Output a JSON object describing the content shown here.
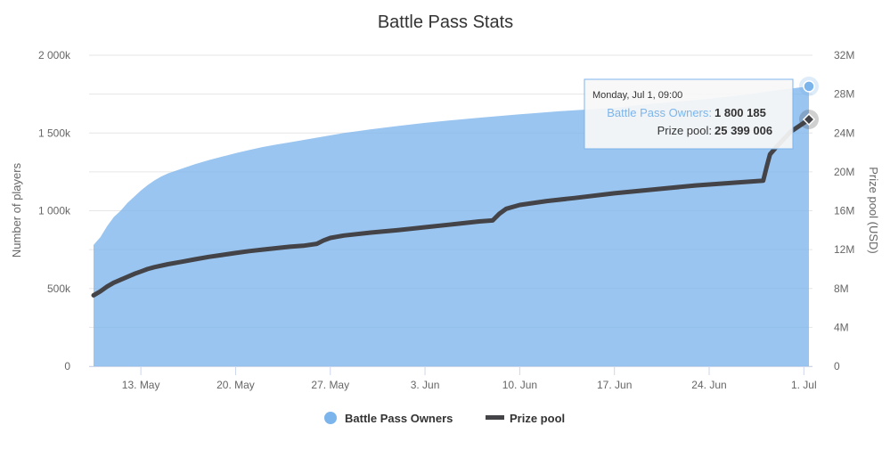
{
  "chart_data": {
    "type": "area",
    "title": "Battle Pass Stats",
    "ylabel_left": "Number of players",
    "ylabel_right": "Prize pool (USD)",
    "x_tick_labels": [
      "13. May",
      "20. May",
      "27. May",
      "3. Jun",
      "10. Jun",
      "17. Jun",
      "24. Jun",
      "1. Jul"
    ],
    "x_tick_dates": [
      "2019-05-13",
      "2019-05-20",
      "2019-05-27",
      "2019-06-03",
      "2019-06-10",
      "2019-06-17",
      "2019-06-24",
      "2019-07-01"
    ],
    "x_range": [
      "2019-05-09T12:00",
      "2019-07-01T09:00"
    ],
    "y_left_ticks": [
      "0",
      "500k",
      "1 000k",
      "1 500k",
      "2 000k"
    ],
    "y_left_range": [
      0,
      2000000
    ],
    "y_right_ticks": [
      "0",
      "4M",
      "8M",
      "12M",
      "16M",
      "20M",
      "24M",
      "28M",
      "32M"
    ],
    "y_right_range": [
      0,
      32000000
    ],
    "grid": true,
    "legend_position": "bottom-center",
    "series": [
      {
        "name": "Battle Pass Owners",
        "type": "area",
        "axis": "left",
        "color": "#7cb5ec",
        "points": [
          [
            "2019-05-09T12:00",
            780000
          ],
          [
            "2019-05-10T00:00",
            830000
          ],
          [
            "2019-05-10T12:00",
            900000
          ],
          [
            "2019-05-11T00:00",
            960000
          ],
          [
            "2019-05-11T12:00",
            1000000
          ],
          [
            "2019-05-12T00:00",
            1050000
          ],
          [
            "2019-05-12T12:00",
            1090000
          ],
          [
            "2019-05-13T00:00",
            1130000
          ],
          [
            "2019-05-13T12:00",
            1165000
          ],
          [
            "2019-05-14T00:00",
            1195000
          ],
          [
            "2019-05-14T12:00",
            1220000
          ],
          [
            "2019-05-15T00:00",
            1240000
          ],
          [
            "2019-05-16T00:00",
            1270000
          ],
          [
            "2019-05-17T00:00",
            1300000
          ],
          [
            "2019-05-18T00:00",
            1325000
          ],
          [
            "2019-05-19T00:00",
            1348000
          ],
          [
            "2019-05-20T00:00",
            1370000
          ],
          [
            "2019-05-21T00:00",
            1390000
          ],
          [
            "2019-05-22T00:00",
            1410000
          ],
          [
            "2019-05-23T00:00",
            1425000
          ],
          [
            "2019-05-24T00:00",
            1440000
          ],
          [
            "2019-05-25T00:00",
            1455000
          ],
          [
            "2019-05-26T00:00",
            1470000
          ],
          [
            "2019-05-27T00:00",
            1485000
          ],
          [
            "2019-05-28T00:00",
            1500000
          ],
          [
            "2019-05-29T00:00",
            1512000
          ],
          [
            "2019-05-30T00:00",
            1524000
          ],
          [
            "2019-06-01T00:00",
            1545000
          ],
          [
            "2019-06-03T00:00",
            1565000
          ],
          [
            "2019-06-05T00:00",
            1582000
          ],
          [
            "2019-06-07T00:00",
            1598000
          ],
          [
            "2019-06-10T00:00",
            1620000
          ],
          [
            "2019-06-13T00:00",
            1640000
          ],
          [
            "2019-06-17T00:00",
            1662000
          ],
          [
            "2019-06-20T00:00",
            1690000
          ],
          [
            "2019-06-24T00:00",
            1720000
          ],
          [
            "2019-06-27T00:00",
            1750000
          ],
          [
            "2019-06-29T00:00",
            1775000
          ],
          [
            "2019-07-01T09:00",
            1800185
          ]
        ]
      },
      {
        "name": "Prize pool",
        "type": "line",
        "axis": "right",
        "color": "#434348",
        "points": [
          [
            "2019-05-09T12:00",
            7300000
          ],
          [
            "2019-05-10T00:00",
            7700000
          ],
          [
            "2019-05-10T12:00",
            8200000
          ],
          [
            "2019-05-11T00:00",
            8600000
          ],
          [
            "2019-05-11T12:00",
            8900000
          ],
          [
            "2019-05-12T00:00",
            9200000
          ],
          [
            "2019-05-12T12:00",
            9500000
          ],
          [
            "2019-05-13T00:00",
            9750000
          ],
          [
            "2019-05-13T12:00",
            10000000
          ],
          [
            "2019-05-14T00:00",
            10200000
          ],
          [
            "2019-05-15T00:00",
            10500000
          ],
          [
            "2019-05-16T00:00",
            10750000
          ],
          [
            "2019-05-17T00:00",
            11000000
          ],
          [
            "2019-05-18T00:00",
            11250000
          ],
          [
            "2019-05-19T00:00",
            11450000
          ],
          [
            "2019-05-20T00:00",
            11650000
          ],
          [
            "2019-05-21T00:00",
            11850000
          ],
          [
            "2019-05-22T00:00",
            12000000
          ],
          [
            "2019-05-23T00:00",
            12150000
          ],
          [
            "2019-05-24T00:00",
            12300000
          ],
          [
            "2019-05-25T00:00",
            12400000
          ],
          [
            "2019-05-26T00:00",
            12600000
          ],
          [
            "2019-05-26T12:00",
            12950000
          ],
          [
            "2019-05-27T00:00",
            13200000
          ],
          [
            "2019-05-28T00:00",
            13450000
          ],
          [
            "2019-05-30T00:00",
            13750000
          ],
          [
            "2019-06-01T00:00",
            14000000
          ],
          [
            "2019-06-03T00:00",
            14300000
          ],
          [
            "2019-06-05T00:00",
            14600000
          ],
          [
            "2019-06-07T00:00",
            14900000
          ],
          [
            "2019-06-08T00:00",
            15000000
          ],
          [
            "2019-06-08T12:00",
            15700000
          ],
          [
            "2019-06-09T00:00",
            16200000
          ],
          [
            "2019-06-10T00:00",
            16600000
          ],
          [
            "2019-06-12T00:00",
            17000000
          ],
          [
            "2019-06-14T00:00",
            17300000
          ],
          [
            "2019-06-17T00:00",
            17800000
          ],
          [
            "2019-06-20T00:00",
            18200000
          ],
          [
            "2019-06-23T00:00",
            18600000
          ],
          [
            "2019-06-26T00:00",
            18900000
          ],
          [
            "2019-06-28T00:00",
            19100000
          ],
          [
            "2019-06-28T06:00",
            20500000
          ],
          [
            "2019-06-28T12:00",
            21800000
          ],
          [
            "2019-06-29T00:00",
            22600000
          ],
          [
            "2019-06-30T00:00",
            24100000
          ],
          [
            "2019-07-01T09:00",
            25399006
          ]
        ]
      }
    ],
    "tooltip": {
      "date": "Monday, Jul 1, 09:00",
      "rows": [
        {
          "label": "Battle Pass Owners:",
          "value": "1 800 185",
          "color": "#7cb5ec"
        },
        {
          "label": "Prize pool:",
          "value": "25 399 006",
          "color": "#333333"
        }
      ]
    }
  }
}
